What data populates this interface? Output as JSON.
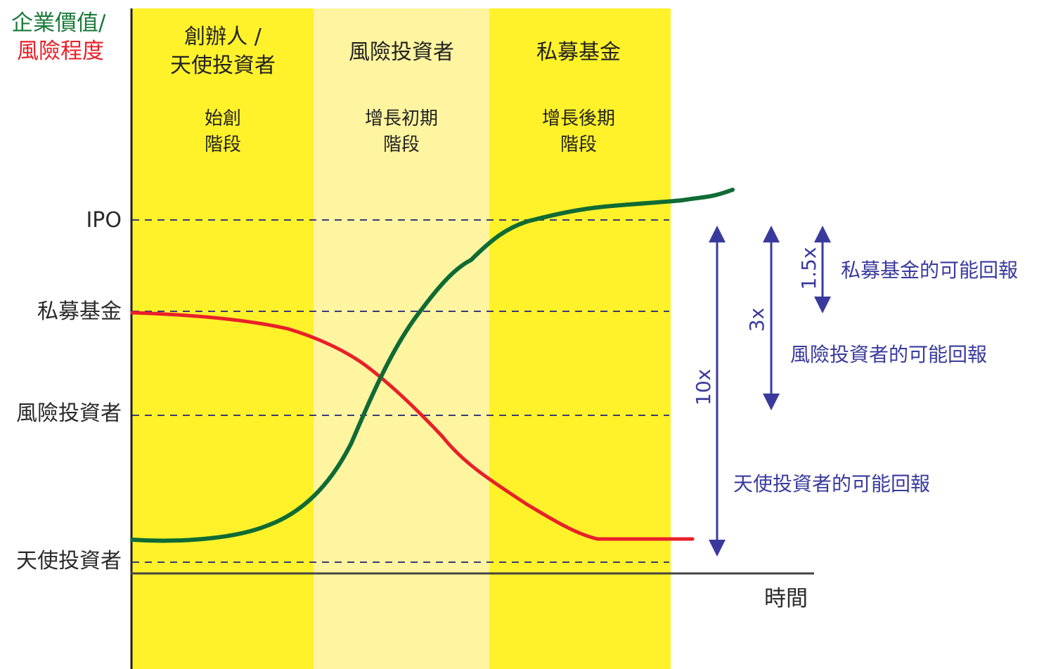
{
  "colors": {
    "phase_dark": "#fff22a",
    "phase_light": "#fff5a0",
    "value_curve": "#0f6b35",
    "risk_curve": "#e8202a",
    "arrow": "#3a3a9e",
    "axis": "#222222",
    "title_value": "#1a7a3a",
    "title_risk": "#e8202a",
    "label": "#2a2a2a"
  },
  "axis": {
    "title_value": "企業價值/",
    "title_risk": "風險程度",
    "x_label": "時間",
    "levels": [
      {
        "key": "ipo",
        "label": "IPO"
      },
      {
        "key": "pe",
        "label": "私募基金"
      },
      {
        "key": "vc",
        "label": "風險投資者"
      },
      {
        "key": "angel",
        "label": "天使投資者"
      }
    ]
  },
  "phases": [
    {
      "title_line1": "創辦人 /",
      "title_line2": "天使投資者",
      "stage_line1": "始創",
      "stage_line2": "階段"
    },
    {
      "title_line1": "風險投資者",
      "title_line2": "",
      "stage_line1": "增長初期",
      "stage_line2": "階段"
    },
    {
      "title_line1": "私募基金",
      "title_line2": "",
      "stage_line1": "增長後期",
      "stage_line2": "階段"
    }
  ],
  "returns": [
    {
      "multiple": "1.5x",
      "label": "私募基金的可能回報"
    },
    {
      "multiple": "3x",
      "label": "風險投資者的可能回報"
    },
    {
      "multiple": "10x",
      "label": "天使投資者的可能回報"
    }
  ]
}
